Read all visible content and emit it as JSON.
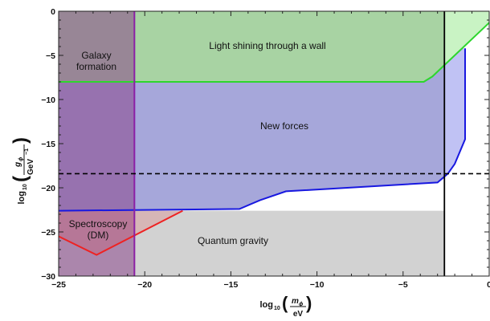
{
  "chart_data": {
    "type": "area",
    "xlim": [
      -25,
      0
    ],
    "ylim": [
      -30,
      0
    ],
    "x_ticks": [
      -25,
      -20,
      -15,
      -10,
      -5,
      0
    ],
    "y_ticks": [
      0,
      -5,
      -10,
      -15,
      -20,
      -25,
      -30
    ],
    "xlabel": {
      "prefix": "log",
      "sub": "10",
      "num": "m",
      "num_sub": "ϕ",
      "den": "eV"
    },
    "ylabel": {
      "prefix": "log",
      "sub": "10",
      "num": "g",
      "num_sub": "ϕ",
      "den": "GeV",
      "den_sup": "−1"
    },
    "colors": {
      "gravity_fill": "#d2d2d2",
      "new_forces_fill": "#a6a7da",
      "wall_fill": "#a8d3a3",
      "wall_fill_right": "#c9f3c4",
      "wall_line": "#2dd62d",
      "new_forces_line": "#1818e0",
      "new_forces_fill_right": "#c0c2f4",
      "galaxy_fill": "rgba(138,71,140,0.55)",
      "galaxy_line": "#8b1fa5",
      "spectroscopy_fill": "rgba(235,55,55,0.18)",
      "spectroscopy_line": "#ee2222",
      "vline": "#000000",
      "hline_dashed": "#000000"
    },
    "regions": [
      {
        "name": "Quantum gravity",
        "y_range": [
          -30,
          -22.6
        ]
      },
      {
        "name": "New forces",
        "boundary": [
          [
            -25,
            -22.6
          ],
          [
            -14.5,
            -22.4
          ],
          [
            -13.3,
            -21.4
          ],
          [
            -11.8,
            -20.4
          ],
          [
            -3,
            -19.4
          ],
          [
            -2.4,
            -18.4
          ],
          [
            -2,
            -17.3
          ],
          [
            -1.4,
            -14.5
          ],
          [
            -1.4,
            -4.2
          ],
          [
            -25,
            -4.2
          ]
        ]
      },
      {
        "name": "Light shining through a wall",
        "boundary": [
          [
            -25,
            -8
          ],
          [
            -3.8,
            -8
          ],
          [
            -3.3,
            -7.4
          ],
          [
            0,
            1
          ]
        ]
      },
      {
        "name": "Galaxy formation",
        "x_max": -20.6
      },
      {
        "name": "Spectroscopy (DM)",
        "boundary": [
          [
            -25,
            -25.5
          ],
          [
            -22.8,
            -27.6
          ],
          [
            -17.8,
            -22.6
          ]
        ]
      }
    ],
    "vertical_line_x": -2.6,
    "dashed_line_y": -18.4
  },
  "labels": {
    "galaxy_line1": "Galaxy",
    "galaxy_line2": "formation",
    "wall": "Light shining through a wall",
    "new_forces": "New forces",
    "spectroscopy_line1": "Spectroscopy",
    "spectroscopy_line2": "(DM)",
    "gravity": "Quantum gravity"
  }
}
